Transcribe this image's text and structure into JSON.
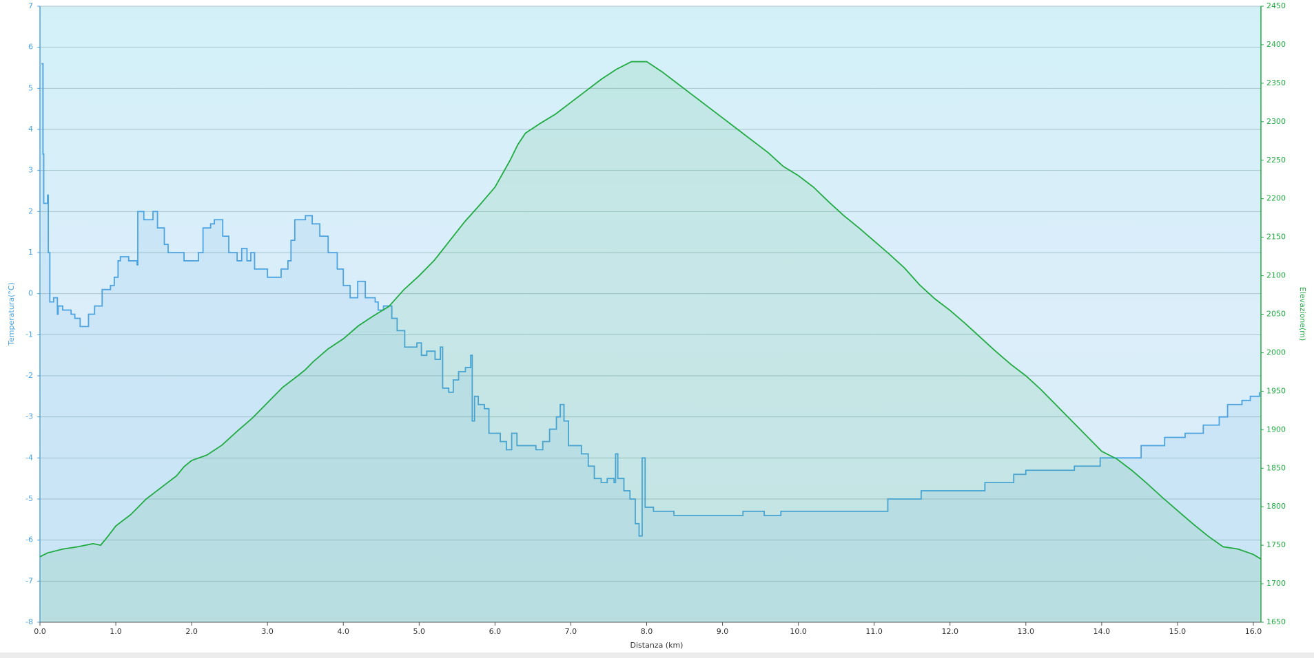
{
  "chart_data": {
    "type": "line",
    "x_label": "Distanza  (km)",
    "y_label": "Temperatura(°C)",
    "y2_label": "Elevazione(m)",
    "xlim": [
      0,
      16.1
    ],
    "xticks": [
      {
        "value": 0,
        "label": "0.0"
      },
      {
        "value": 1,
        "label": "1.0"
      },
      {
        "value": 2,
        "label": "2.0"
      },
      {
        "value": 3,
        "label": "3.0"
      },
      {
        "value": 4,
        "label": "4.0"
      },
      {
        "value": 5,
        "label": "5.0"
      },
      {
        "value": 6,
        "label": "6.0"
      },
      {
        "value": 7,
        "label": "7.0"
      },
      {
        "value": 8,
        "label": "8.0"
      },
      {
        "value": 9,
        "label": "9.0"
      },
      {
        "value": 10,
        "label": "10.0"
      },
      {
        "value": 11,
        "label": "11.0"
      },
      {
        "value": 12,
        "label": "12.0"
      },
      {
        "value": 13,
        "label": "13.0"
      },
      {
        "value": 14,
        "label": "14.0"
      },
      {
        "value": 15,
        "label": "15.0"
      },
      {
        "value": 16,
        "label": "16.0"
      }
    ],
    "ylim": [
      -8,
      7
    ],
    "yticks": [
      -8,
      -7,
      -6,
      -5,
      -4,
      -3,
      -2,
      -1,
      0,
      1,
      2,
      3,
      4,
      5,
      6,
      7
    ],
    "y2lim": [
      1650,
      2450
    ],
    "y2ticks": [
      1650,
      1700,
      1750,
      1800,
      1850,
      1900,
      1950,
      2000,
      2050,
      2100,
      2150,
      2200,
      2250,
      2300,
      2350,
      2400,
      2450
    ],
    "grid": true,
    "series": [
      {
        "color": "#4ca3e0",
        "step": true,
        "x": [
          0.02,
          0.04,
          0.05,
          0.1,
          0.11,
          0.13,
          0.18,
          0.23,
          0.24,
          0.3,
          0.41,
          0.46,
          0.53,
          0.64,
          0.72,
          0.82,
          0.93,
          0.98,
          1.03,
          1.06,
          1.17,
          1.28,
          1.29,
          1.37,
          1.49,
          1.55,
          1.64,
          1.69,
          1.9,
          2.09,
          2.15,
          2.25,
          2.3,
          2.41,
          2.49,
          2.6,
          2.66,
          2.73,
          2.78,
          2.83,
          3.0,
          3.18,
          3.27,
          3.31,
          3.36,
          3.5,
          3.59,
          3.69,
          3.8,
          3.92,
          4.0,
          4.09,
          4.19,
          4.29,
          4.42,
          4.46,
          4.53,
          4.64,
          4.71,
          4.81,
          4.97,
          5.03,
          5.1,
          5.21,
          5.28,
          5.31,
          5.39,
          5.45,
          5.52,
          5.61,
          5.68,
          5.7,
          5.73,
          5.78,
          5.86,
          5.92,
          6.07,
          6.15,
          6.22,
          6.29,
          6.54,
          6.63,
          6.72,
          6.81,
          6.86,
          6.91,
          6.97,
          7.14,
          7.23,
          7.31,
          7.4,
          7.48,
          7.57,
          7.59,
          7.62,
          7.7,
          7.78,
          7.85,
          7.9,
          7.94,
          7.98,
          8.09,
          8.36,
          9.27,
          9.55,
          9.77,
          11.18,
          11.62,
          12.46,
          12.84,
          13.0,
          13.64,
          13.98,
          14.52,
          14.83,
          15.1,
          15.34,
          15.55,
          15.66,
          15.85,
          15.96,
          16.08
        ],
        "values": [
          5.6,
          3.4,
          2.2,
          2.4,
          1.0,
          -0.2,
          -0.1,
          -0.5,
          -0.3,
          -0.4,
          -0.5,
          -0.6,
          -0.8,
          -0.5,
          -0.3,
          0.1,
          0.2,
          0.4,
          0.8,
          0.9,
          0.8,
          0.7,
          2.0,
          1.8,
          2.0,
          1.6,
          1.2,
          1.0,
          0.8,
          1.0,
          1.6,
          1.7,
          1.8,
          1.4,
          1.0,
          0.8,
          1.1,
          0.8,
          1.0,
          0.6,
          0.4,
          0.6,
          0.8,
          1.3,
          1.8,
          1.9,
          1.7,
          1.4,
          1.0,
          0.6,
          0.2,
          -0.1,
          0.3,
          -0.1,
          -0.2,
          -0.4,
          -0.3,
          -0.6,
          -0.9,
          -1.3,
          -1.2,
          -1.5,
          -1.4,
          -1.6,
          -1.3,
          -2.3,
          -2.4,
          -2.1,
          -1.9,
          -1.8,
          -1.5,
          -3.1,
          -2.5,
          -2.7,
          -2.8,
          -3.4,
          -3.6,
          -3.8,
          -3.4,
          -3.7,
          -3.8,
          -3.6,
          -3.3,
          -3.0,
          -2.7,
          -3.1,
          -3.7,
          -3.9,
          -4.2,
          -4.5,
          -4.6,
          -4.5,
          -4.6,
          -3.9,
          -4.5,
          -4.8,
          -5.0,
          -5.6,
          -5.9,
          -4.0,
          -5.2,
          -5.3,
          -5.4,
          -5.3,
          -5.4,
          -5.3,
          -5.0,
          -4.8,
          -4.6,
          -4.4,
          -4.3,
          -4.2,
          -4.0,
          -3.7,
          -3.5,
          -3.4,
          -3.2,
          -3.0,
          -2.7,
          -2.6,
          -2.5,
          -2.4
        ]
      },
      {
        "color": "#1faa40",
        "axis": "y2",
        "x": [
          0.0,
          0.1,
          0.3,
          0.5,
          0.7,
          0.8,
          0.9,
          1.0,
          1.2,
          1.4,
          1.6,
          1.8,
          1.9,
          2.0,
          2.2,
          2.4,
          2.6,
          2.8,
          3.0,
          3.2,
          3.4,
          3.5,
          3.6,
          3.8,
          4.0,
          4.2,
          4.4,
          4.6,
          4.8,
          5.0,
          5.2,
          5.4,
          5.6,
          5.8,
          6.0,
          6.2,
          6.3,
          6.4,
          6.6,
          6.8,
          7.0,
          7.2,
          7.4,
          7.6,
          7.8,
          8.0,
          8.2,
          8.4,
          8.6,
          8.8,
          9.0,
          9.2,
          9.4,
          9.6,
          9.8,
          10.0,
          10.2,
          10.4,
          10.6,
          10.8,
          11.0,
          11.2,
          11.4,
          11.6,
          11.8,
          12.0,
          12.2,
          12.4,
          12.6,
          12.8,
          13.0,
          13.2,
          13.4,
          13.6,
          13.8,
          14.0,
          14.2,
          14.4,
          14.6,
          14.8,
          15.0,
          15.2,
          15.4,
          15.6,
          15.8,
          16.0,
          16.1
        ],
        "values": [
          1735,
          1740,
          1745,
          1748,
          1752,
          1750,
          1762,
          1775,
          1790,
          1810,
          1825,
          1840,
          1852,
          1860,
          1867,
          1880,
          1898,
          1915,
          1935,
          1955,
          1970,
          1978,
          1988,
          2005,
          2018,
          2035,
          2048,
          2060,
          2082,
          2100,
          2120,
          2145,
          2170,
          2192,
          2215,
          2250,
          2270,
          2285,
          2298,
          2310,
          2325,
          2340,
          2355,
          2368,
          2378,
          2378,
          2365,
          2350,
          2335,
          2320,
          2305,
          2290,
          2275,
          2260,
          2242,
          2230,
          2215,
          2196,
          2178,
          2162,
          2145,
          2128,
          2110,
          2088,
          2070,
          2055,
          2038,
          2020,
          2002,
          1985,
          1970,
          1952,
          1932,
          1912,
          1892,
          1872,
          1862,
          1847,
          1830,
          1812,
          1795,
          1778,
          1762,
          1748,
          1745,
          1738,
          1732
        ]
      }
    ]
  }
}
